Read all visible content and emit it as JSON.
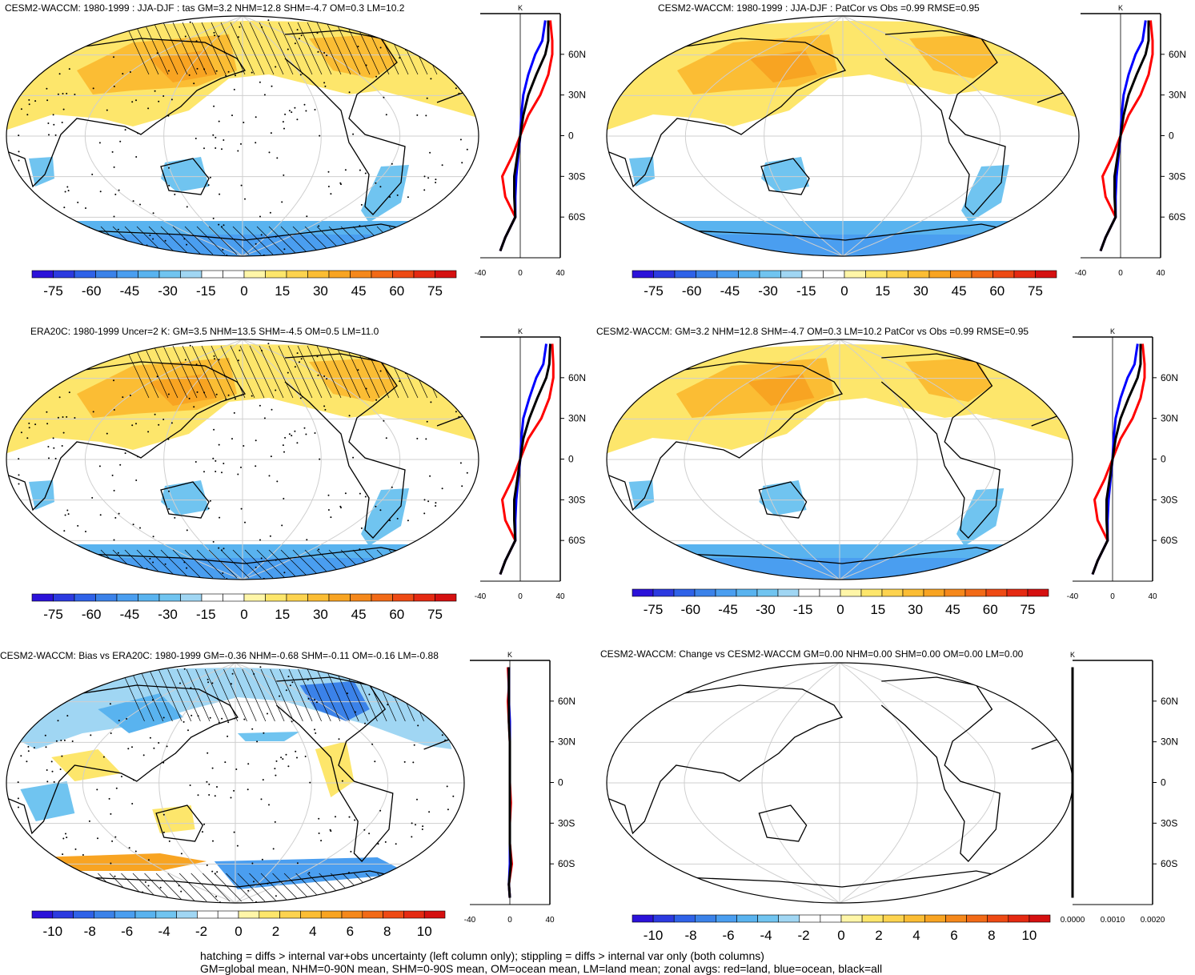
{
  "panels": [
    {
      "title": "CESM2-WACCM: 1980-1999 : JJA-DJF : tas GM=3.2 NHM=12.8 SHM=-4.7 OM=0.3 LM=10.2",
      "colorbar_ticks": [
        "-75",
        "-60",
        "-45",
        "-30",
        "-15",
        "0",
        "15",
        "30",
        "45",
        "60",
        "75"
      ],
      "profile_xticks": [
        "-40",
        "0",
        "40"
      ],
      "profile_unit": "K",
      "profile_lat_labels": [
        "60N",
        "30N",
        "0",
        "30S",
        "60S"
      ],
      "profile_range": [
        -40,
        40
      ],
      "type": "tas",
      "hatch": true,
      "stipple": true
    },
    {
      "title": "CESM2-WACCM: 1980-1999 : JJA-DJF : PatCor vs Obs =0.99 RMSE=0.95",
      "colorbar_ticks": [
        "-75",
        "-60",
        "-45",
        "-30",
        "-15",
        "0",
        "15",
        "30",
        "45",
        "60",
        "75"
      ],
      "profile_xticks": [
        "-40",
        "0",
        "40"
      ],
      "profile_unit": "K",
      "profile_lat_labels": [
        "60N",
        "30N",
        "0",
        "30S",
        "60S"
      ],
      "profile_range": [
        -40,
        40
      ],
      "type": "tas",
      "hatch": false,
      "stipple": false
    },
    {
      "title": "ERA20C: 1980-1999 Uncer=2 K: GM=3.5 NHM=13.5 SHM=-4.5 OM=0.5 LM=11.0",
      "colorbar_ticks": [
        "-75",
        "-60",
        "-45",
        "-30",
        "-15",
        "0",
        "15",
        "30",
        "45",
        "60",
        "75"
      ],
      "profile_xticks": [
        "-40",
        "0",
        "40"
      ],
      "profile_unit": "K",
      "profile_lat_labels": [
        "60N",
        "30N",
        "0",
        "30S",
        "60S"
      ],
      "profile_range": [
        -40,
        40
      ],
      "type": "tas",
      "hatch": true,
      "stipple": true
    },
    {
      "title": "CESM2-WACCM: GM=3.2 NHM=12.8 SHM=-4.7 OM=0.3 LM=10.2 PatCor vs Obs =0.99 RMSE=0.95",
      "colorbar_ticks": [
        "-75",
        "-60",
        "-45",
        "-30",
        "-15",
        "0",
        "15",
        "30",
        "45",
        "60",
        "75"
      ],
      "profile_xticks": [
        "-40",
        "0",
        "40"
      ],
      "profile_unit": "K",
      "profile_lat_labels": [
        "60N",
        "30N",
        "0",
        "30S",
        "60S"
      ],
      "profile_range": [
        -40,
        40
      ],
      "type": "tas",
      "hatch": false,
      "stipple": false
    },
    {
      "title": "CESM2-WACCM: Bias vs ERA20C: 1980-1999 GM=-0.36 NHM=-0.68 SHM=-0.11 OM=-0.16 LM=-0.88",
      "colorbar_ticks": [
        "-10",
        "-8",
        "-6",
        "-4",
        "-2",
        "0",
        "2",
        "4",
        "6",
        "8",
        "10"
      ],
      "profile_xticks": [
        "-40",
        "0",
        "40"
      ],
      "profile_unit": "K",
      "profile_lat_labels": [
        "60N",
        "30N",
        "0",
        "30S",
        "60S"
      ],
      "profile_range": [
        -40,
        40
      ],
      "type": "bias",
      "hatch": true,
      "stipple": true
    },
    {
      "title": "CESM2-WACCM: Change vs CESM2-WACCM GM=0.00 NHM=0.00 SHM=0.00 OM=0.00 LM=0.00",
      "colorbar_ticks": [
        "-10",
        "-8",
        "-6",
        "-4",
        "-2",
        "0",
        "2",
        "4",
        "6",
        "8",
        "10"
      ],
      "profile_xticks": [
        "0.0000",
        "0.0010",
        "0.0020"
      ],
      "profile_unit": "K",
      "profile_lat_labels": [
        "60N",
        "30N",
        "0",
        "30S",
        "60S"
      ],
      "profile_range": [
        0,
        0.0025
      ],
      "type": "change",
      "hatch": false,
      "stipple": false
    }
  ],
  "colors": {
    "palette": [
      "#2b12d9",
      "#2c3ae0",
      "#2f62e8",
      "#3b82e9",
      "#4a9ef0",
      "#59b3ef",
      "#70c4f0",
      "#a0d6f3",
      "#ffffff",
      "#ffffff",
      "#fff6a8",
      "#fde66b",
      "#fdd34f",
      "#fbbd34",
      "#f8a422",
      "#f5881b",
      "#f26a17",
      "#ee4a14",
      "#e52a12",
      "#d51010"
    ],
    "land_line": "#ff0000",
    "ocean_line": "#0000ff",
    "all_line": "#000000"
  },
  "footer": {
    "line1": "hatching = diffs > internal var+obs uncertainty (left column only); stippling = diffs > internal var only (both columns)",
    "line2": "GM=global mean, NHM=0-90N mean, SHM=0-90S mean, OM=ocean mean, LM=land mean; zonal avgs: red=land, blue=ocean, black=all"
  },
  "chart_data": [
    {
      "type": "heatmap",
      "title": "CESM2-WACCM: 1980-1999 : JJA-DJF : tas GM=3.2 NHM=12.8 SHM=-4.7 OM=0.3 LM=10.2",
      "colorbar_range": [
        -75,
        75
      ],
      "zonal_profile": {
        "lat": [
          85,
          70,
          60,
          45,
          30,
          15,
          0,
          -15,
          -30,
          -45,
          -60,
          -75,
          -85
        ],
        "land": [
          30,
          32,
          32,
          28,
          20,
          8,
          0,
          -8,
          -18,
          -15,
          -5,
          -15,
          -20
        ],
        "ocean": [
          25,
          22,
          15,
          8,
          3,
          1,
          0,
          -2,
          -4,
          -5,
          -5,
          -15,
          -20
        ],
        "all": [
          28,
          28,
          25,
          16,
          8,
          3,
          0,
          -3,
          -6,
          -6,
          -5,
          -15,
          -20
        ]
      }
    },
    {
      "type": "heatmap",
      "title": "CESM2-WACCM: 1980-1999 : JJA-DJF : PatCor vs Obs =0.99 RMSE=0.95",
      "colorbar_range": [
        -75,
        75
      ],
      "zonal_profile": {
        "lat": [
          85,
          70,
          60,
          45,
          30,
          15,
          0,
          -15,
          -30,
          -45,
          -60,
          -75,
          -85
        ],
        "land": [
          30,
          32,
          32,
          28,
          20,
          8,
          0,
          -8,
          -18,
          -15,
          -5,
          -15,
          -20
        ],
        "ocean": [
          25,
          22,
          15,
          8,
          3,
          1,
          0,
          -2,
          -4,
          -5,
          -5,
          -15,
          -20
        ],
        "all": [
          28,
          28,
          25,
          16,
          8,
          3,
          0,
          -3,
          -6,
          -6,
          -5,
          -15,
          -20
        ]
      }
    },
    {
      "type": "heatmap",
      "title": "ERA20C: 1980-1999 Uncer=2 K: GM=3.5 NHM=13.5 SHM=-4.5 OM=0.5 LM=11.0",
      "colorbar_range": [
        -75,
        75
      ],
      "zonal_profile": {
        "lat": [
          85,
          70,
          60,
          45,
          30,
          15,
          0,
          -15,
          -30,
          -45,
          -60,
          -75,
          -85
        ],
        "land": [
          32,
          33,
          33,
          29,
          21,
          8,
          0,
          -8,
          -18,
          -15,
          -5,
          -15,
          -20
        ],
        "ocean": [
          26,
          23,
          16,
          9,
          3,
          1,
          0,
          -2,
          -4,
          -5,
          -5,
          -15,
          -20
        ],
        "all": [
          30,
          29,
          26,
          17,
          9,
          3,
          0,
          -3,
          -6,
          -6,
          -5,
          -15,
          -20
        ]
      }
    },
    {
      "type": "heatmap",
      "title": "CESM2-WACCM: GM=3.2 NHM=12.8 SHM=-4.7 OM=0.3 LM=10.2 PatCor vs Obs =0.99 RMSE=0.95",
      "colorbar_range": [
        -75,
        75
      ],
      "zonal_profile": {
        "lat": [
          85,
          70,
          60,
          45,
          30,
          15,
          0,
          -15,
          -30,
          -45,
          -60,
          -75,
          -85
        ],
        "land": [
          30,
          32,
          32,
          28,
          20,
          8,
          0,
          -8,
          -18,
          -15,
          -5,
          -15,
          -20
        ],
        "ocean": [
          25,
          22,
          15,
          8,
          3,
          1,
          0,
          -2,
          -4,
          -5,
          -5,
          -15,
          -20
        ],
        "all": [
          28,
          28,
          25,
          16,
          8,
          3,
          0,
          -3,
          -6,
          -6,
          -5,
          -15,
          -20
        ]
      }
    },
    {
      "type": "heatmap",
      "title": "CESM2-WACCM: Bias vs ERA20C: 1980-1999 GM=-0.36 NHM=-0.68 SHM=-0.11 OM=-0.16 LM=-0.88",
      "colorbar_range": [
        -10,
        10
      ],
      "zonal_profile": {
        "lat": [
          85,
          70,
          60,
          45,
          30,
          15,
          0,
          -15,
          -30,
          -45,
          -60,
          -75,
          -85
        ],
        "land": [
          -2,
          -1,
          -2,
          -1,
          0,
          0,
          0,
          1,
          0,
          0,
          2,
          -1,
          0
        ],
        "ocean": [
          -1,
          -1,
          -1,
          0,
          0,
          0,
          0,
          0,
          0,
          0,
          0,
          -1,
          0
        ],
        "all": [
          -1,
          -1,
          -1,
          -1,
          0,
          0,
          0,
          0,
          0,
          0,
          1,
          -1,
          0
        ]
      }
    },
    {
      "type": "heatmap",
      "title": "CESM2-WACCM: Change vs CESM2-WACCM GM=0.00 NHM=0.00 SHM=0.00 OM=0.00 LM=0.00",
      "colorbar_range": [
        -10,
        10
      ],
      "zonal_profile": {
        "lat": [
          85,
          70,
          60,
          45,
          30,
          15,
          0,
          -15,
          -30,
          -45,
          -60,
          -75,
          -85
        ],
        "land": [
          0,
          0,
          0,
          0,
          0,
          0,
          0,
          0,
          0,
          0,
          0,
          0,
          0
        ],
        "ocean": [
          0,
          0,
          0,
          0,
          0,
          0,
          0,
          0,
          0,
          0,
          0,
          0,
          0
        ],
        "all": [
          0,
          0,
          0,
          0,
          0,
          0,
          0,
          0,
          0,
          0,
          0,
          0,
          0
        ]
      }
    }
  ]
}
